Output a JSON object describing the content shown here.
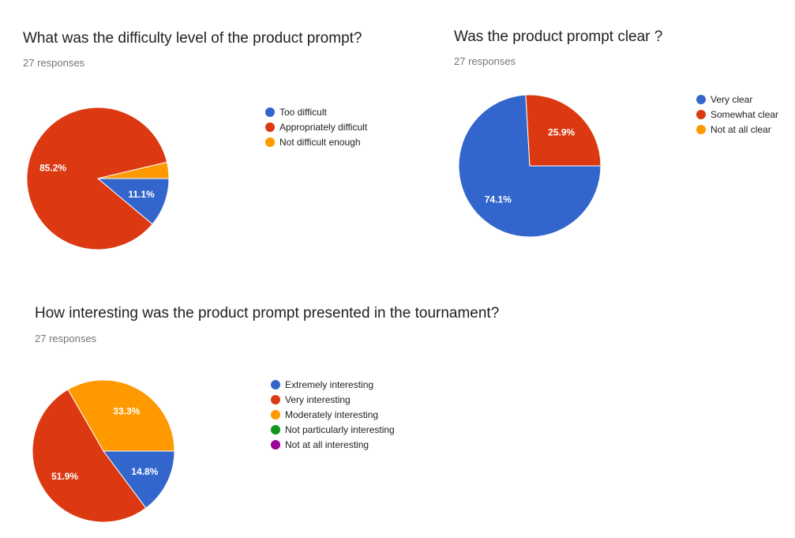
{
  "chart_data": [
    {
      "type": "pie",
      "title": "What was the difficulty level of the product prompt?",
      "subtitle": "27 responses",
      "categories": [
        "Too difficult",
        "Appropriately difficult",
        "Not difficult enough"
      ],
      "values": [
        11.1,
        85.2,
        3.7
      ],
      "data_labels": [
        "11.1%",
        "85.2%",
        ""
      ],
      "colors": [
        "#3366cc",
        "#dc3912",
        "#ff9900"
      ],
      "legend": "right"
    },
    {
      "type": "pie",
      "title": "Was the product prompt clear ?",
      "subtitle": "27 responses",
      "categories": [
        "Very clear",
        "Somewhat clear",
        "Not at all clear"
      ],
      "values": [
        74.1,
        25.9,
        0
      ],
      "data_labels": [
        "74.1%",
        "25.9%",
        ""
      ],
      "colors": [
        "#3366cc",
        "#dc3912",
        "#ff9900"
      ],
      "legend": "right"
    },
    {
      "type": "pie",
      "title": "How interesting was the product prompt presented in the tournament?",
      "subtitle": "27 responses",
      "categories": [
        "Extremely interesting",
        "Very interesting",
        "Moderately interesting",
        "Not particularly interesting",
        "Not at all interesting"
      ],
      "values": [
        14.8,
        51.9,
        33.3,
        0,
        0
      ],
      "data_labels": [
        "14.8%",
        "51.9%",
        "33.3%",
        "",
        ""
      ],
      "colors": [
        "#3366cc",
        "#dc3912",
        "#ff9900",
        "#109618",
        "#990099"
      ],
      "legend": "right"
    }
  ]
}
